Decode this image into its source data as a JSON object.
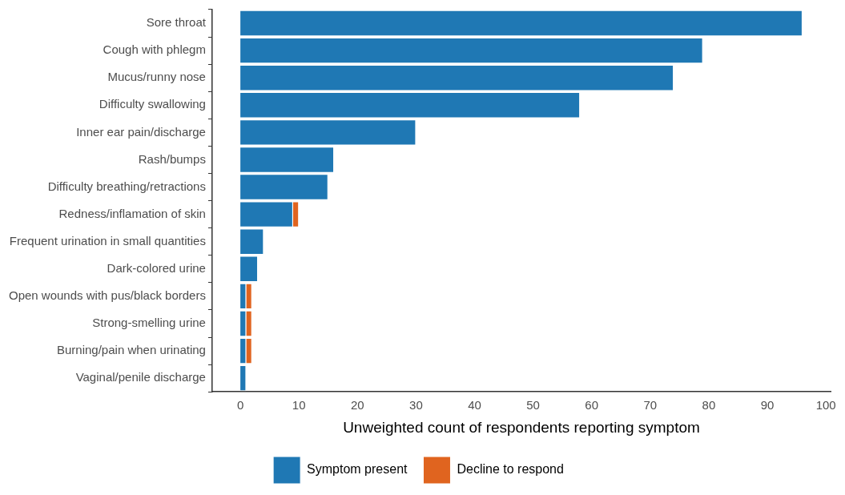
{
  "chart_data": {
    "type": "bar",
    "orientation": "horizontal",
    "stacked": true,
    "xlabel": "Unweighted count of respondents reporting symptom",
    "categories": [
      "Sore throat",
      "Cough with phlegm",
      "Mucus/runny nose",
      "Difficulty swallowing",
      "Inner ear pain/discharge",
      "Rash/bumps",
      "Difficulty breathing/retractions",
      "Redness/inflamation of skin",
      "Frequent urination in small quantities",
      "Dark-colored urine",
      "Open wounds with pus/black borders",
      "Strong-smelling urine",
      "Burning/pain when urinating",
      "Vaginal/penile discharge"
    ],
    "series": [
      {
        "name": "Symptom present",
        "color": "#1f78b4",
        "values": [
          96,
          79,
          74,
          58,
          30,
          16,
          15,
          9,
          4,
          3,
          1,
          1,
          1,
          1
        ]
      },
      {
        "name": "Decline to respond",
        "color": "#e0641f",
        "values": [
          null,
          null,
          null,
          null,
          null,
          null,
          null,
          1,
          null,
          null,
          1,
          1,
          1,
          null
        ]
      }
    ],
    "xlim": [
      -4.8,
      100.8
    ],
    "xticks": [
      0,
      10,
      20,
      30,
      40,
      50,
      60,
      70,
      80,
      90,
      100
    ],
    "grid": false,
    "legend": "bottom"
  }
}
